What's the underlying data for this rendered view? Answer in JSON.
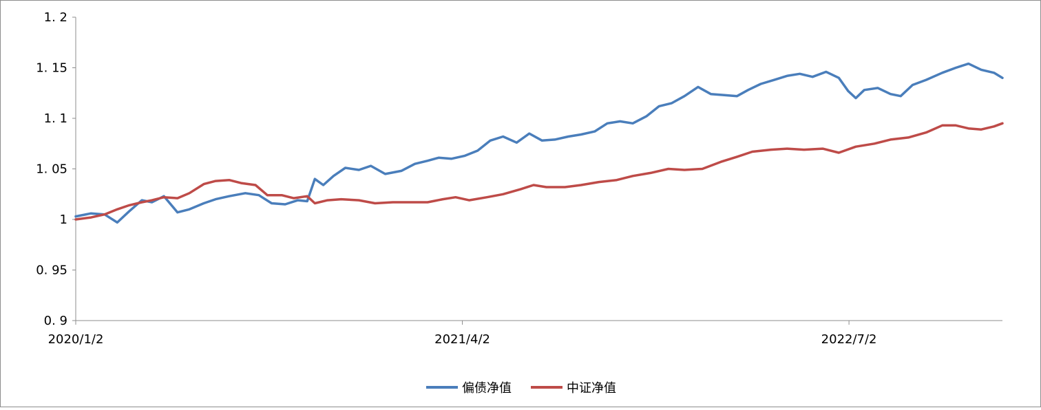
{
  "chart_data": {
    "type": "line",
    "title": "",
    "xlabel": "",
    "ylabel": "",
    "ylim": [
      0.9,
      1.2
    ],
    "yticks": [
      "0.9",
      "0.95",
      "1",
      "1.05",
      "1.1",
      "1.15",
      "1.2"
    ],
    "yticks_display": [
      "0. 9",
      "0. 95",
      "1",
      "1. 05",
      "1. 1",
      "1. 15",
      "1. 2"
    ],
    "xticks": [
      "2020/1/2",
      "2021/4/2",
      "2022/7/2"
    ],
    "xlim": [
      "2020-01-02",
      "2022-12-30"
    ],
    "grid": false,
    "legend_position": "bottom-center",
    "series": [
      {
        "name": "偏债净值",
        "color": "#4a7ebb",
        "points": [
          [
            "2020-01-02",
            1.003
          ],
          [
            "2020-01-20",
            1.006
          ],
          [
            "2020-02-05",
            1.005
          ],
          [
            "2020-02-20",
            0.997
          ],
          [
            "2020-03-05",
            1.008
          ],
          [
            "2020-03-20",
            1.019
          ],
          [
            "2020-04-01",
            1.017
          ],
          [
            "2020-04-15",
            1.023
          ],
          [
            "2020-05-01",
            1.007
          ],
          [
            "2020-05-15",
            1.01
          ],
          [
            "2020-06-01",
            1.016
          ],
          [
            "2020-06-15",
            1.02
          ],
          [
            "2020-07-01",
            1.023
          ],
          [
            "2020-07-20",
            1.026
          ],
          [
            "2020-08-05",
            1.024
          ],
          [
            "2020-08-20",
            1.016
          ],
          [
            "2020-09-05",
            1.015
          ],
          [
            "2020-09-20",
            1.019
          ],
          [
            "2020-10-01",
            1.018
          ],
          [
            "2020-10-10",
            1.04
          ],
          [
            "2020-10-20",
            1.034
          ],
          [
            "2020-11-01",
            1.043
          ],
          [
            "2020-11-15",
            1.051
          ],
          [
            "2020-12-01",
            1.049
          ],
          [
            "2020-12-15",
            1.053
          ],
          [
            "2021-01-01",
            1.045
          ],
          [
            "2021-01-20",
            1.048
          ],
          [
            "2021-02-05",
            1.055
          ],
          [
            "2021-02-20",
            1.058
          ],
          [
            "2021-03-05",
            1.061
          ],
          [
            "2021-03-20",
            1.06
          ],
          [
            "2021-04-05",
            1.063
          ],
          [
            "2021-04-20",
            1.068
          ],
          [
            "2021-05-05",
            1.078
          ],
          [
            "2021-05-20",
            1.082
          ],
          [
            "2021-06-05",
            1.076
          ],
          [
            "2021-06-20",
            1.085
          ],
          [
            "2021-07-05",
            1.078
          ],
          [
            "2021-07-20",
            1.079
          ],
          [
            "2021-08-05",
            1.082
          ],
          [
            "2021-08-20",
            1.084
          ],
          [
            "2021-09-05",
            1.087
          ],
          [
            "2021-09-20",
            1.095
          ],
          [
            "2021-10-05",
            1.097
          ],
          [
            "2021-10-20",
            1.095
          ],
          [
            "2021-11-05",
            1.102
          ],
          [
            "2021-11-20",
            1.112
          ],
          [
            "2021-12-05",
            1.115
          ],
          [
            "2021-12-20",
            1.122
          ],
          [
            "2022-01-05",
            1.131
          ],
          [
            "2022-01-20",
            1.124
          ],
          [
            "2022-02-05",
            1.123
          ],
          [
            "2022-02-20",
            1.122
          ],
          [
            "2022-03-05",
            1.128
          ],
          [
            "2022-03-20",
            1.134
          ],
          [
            "2022-04-05",
            1.138
          ],
          [
            "2022-04-20",
            1.142
          ],
          [
            "2022-05-05",
            1.144
          ],
          [
            "2022-05-20",
            1.141
          ],
          [
            "2022-06-05",
            1.146
          ],
          [
            "2022-06-20",
            1.14
          ],
          [
            "2022-07-01",
            1.127
          ],
          [
            "2022-07-10",
            1.12
          ],
          [
            "2022-07-20",
            1.128
          ],
          [
            "2022-08-05",
            1.13
          ],
          [
            "2022-08-20",
            1.124
          ],
          [
            "2022-09-01",
            1.122
          ],
          [
            "2022-09-15",
            1.133
          ],
          [
            "2022-10-01",
            1.138
          ],
          [
            "2022-10-20",
            1.145
          ],
          [
            "2022-11-05",
            1.15
          ],
          [
            "2022-11-20",
            1.154
          ],
          [
            "2022-12-05",
            1.148
          ],
          [
            "2022-12-20",
            1.145
          ],
          [
            "2022-12-30",
            1.14
          ]
        ]
      },
      {
        "name": "中证净值",
        "color": "#be4b48",
        "points": [
          [
            "2020-01-02",
            1.0
          ],
          [
            "2020-01-20",
            1.002
          ],
          [
            "2020-02-05",
            1.005
          ],
          [
            "2020-02-20",
            1.01
          ],
          [
            "2020-03-05",
            1.014
          ],
          [
            "2020-03-20",
            1.017
          ],
          [
            "2020-04-01",
            1.019
          ],
          [
            "2020-04-15",
            1.022
          ],
          [
            "2020-05-01",
            1.021
          ],
          [
            "2020-05-15",
            1.026
          ],
          [
            "2020-06-01",
            1.035
          ],
          [
            "2020-06-15",
            1.038
          ],
          [
            "2020-07-01",
            1.039
          ],
          [
            "2020-07-15",
            1.036
          ],
          [
            "2020-08-01",
            1.034
          ],
          [
            "2020-08-15",
            1.024
          ],
          [
            "2020-09-01",
            1.024
          ],
          [
            "2020-09-15",
            1.021
          ],
          [
            "2020-10-01",
            1.023
          ],
          [
            "2020-10-10",
            1.016
          ],
          [
            "2020-10-25",
            1.019
          ],
          [
            "2020-11-10",
            1.02
          ],
          [
            "2020-12-01",
            1.019
          ],
          [
            "2020-12-20",
            1.016
          ],
          [
            "2021-01-10",
            1.017
          ],
          [
            "2021-02-01",
            1.017
          ],
          [
            "2021-02-20",
            1.017
          ],
          [
            "2021-03-10",
            1.02
          ],
          [
            "2021-03-25",
            1.022
          ],
          [
            "2021-04-10",
            1.019
          ],
          [
            "2021-05-01",
            1.022
          ],
          [
            "2021-05-20",
            1.025
          ],
          [
            "2021-06-10",
            1.03
          ],
          [
            "2021-06-25",
            1.034
          ],
          [
            "2021-07-10",
            1.032
          ],
          [
            "2021-08-01",
            1.032
          ],
          [
            "2021-08-20",
            1.034
          ],
          [
            "2021-09-10",
            1.037
          ],
          [
            "2021-10-01",
            1.039
          ],
          [
            "2021-10-20",
            1.043
          ],
          [
            "2021-11-10",
            1.046
          ],
          [
            "2021-12-01",
            1.05
          ],
          [
            "2021-12-20",
            1.049
          ],
          [
            "2022-01-10",
            1.05
          ],
          [
            "2022-02-01",
            1.057
          ],
          [
            "2022-02-20",
            1.062
          ],
          [
            "2022-03-10",
            1.067
          ],
          [
            "2022-04-01",
            1.069
          ],
          [
            "2022-04-20",
            1.07
          ],
          [
            "2022-05-10",
            1.069
          ],
          [
            "2022-06-01",
            1.07
          ],
          [
            "2022-06-20",
            1.066
          ],
          [
            "2022-07-10",
            1.072
          ],
          [
            "2022-08-01",
            1.075
          ],
          [
            "2022-08-20",
            1.079
          ],
          [
            "2022-09-10",
            1.081
          ],
          [
            "2022-10-01",
            1.086
          ],
          [
            "2022-10-20",
            1.093
          ],
          [
            "2022-11-05",
            1.093
          ],
          [
            "2022-11-20",
            1.09
          ],
          [
            "2022-12-05",
            1.089
          ],
          [
            "2022-12-20",
            1.092
          ],
          [
            "2022-12-30",
            1.095
          ]
        ]
      }
    ]
  }
}
